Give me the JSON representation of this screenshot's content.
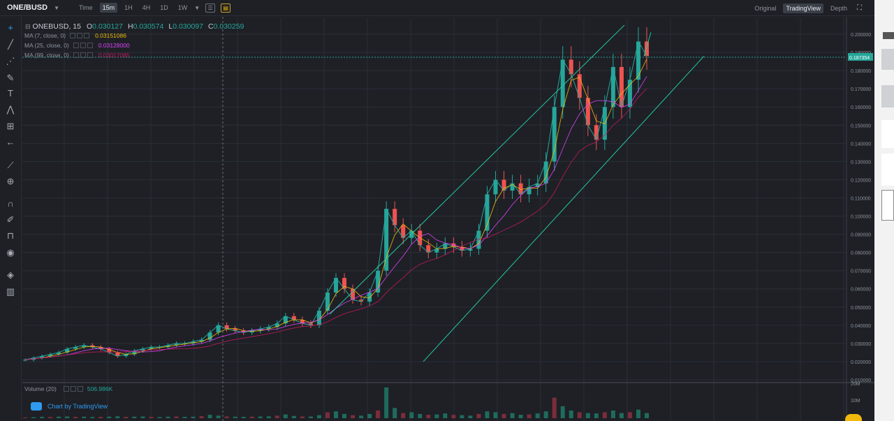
{
  "topbar": {
    "pair": "ONE/BUSD",
    "timeframes": [
      "Time",
      "15m",
      "1H",
      "4H",
      "1D",
      "1W"
    ],
    "active_timeframe": "15m",
    "views": [
      "Original",
      "TradingView",
      "Depth"
    ],
    "active_view": "TradingView"
  },
  "legend": {
    "symbol": "ONEBUSD, 15",
    "open_label": "O",
    "open": "0.030127",
    "high_label": "H",
    "high": "0.030574",
    "low_label": "L",
    "low": "0.030097",
    "close_label": "C",
    "close": "0.030259",
    "ma7_label": "MA (7, close, 0)",
    "ma7_value": "0.03151086",
    "ma25_label": "MA (25, close, 0)",
    "ma25_value": "0.03128000",
    "ma99_label": "MA (99, close, 0)",
    "ma99_value": "0.03017085",
    "volume_label": "Volume (20)",
    "volume_value": "506.986K",
    "tradingview_credit": "Chart by TradingView"
  },
  "colors": {
    "up": "#26a69a",
    "down": "#ef5350",
    "ma7": "#f0b90b",
    "ma25": "#e040fb",
    "ma99": "#c2185b",
    "channel": "#26c6a0",
    "accent": "#f0b90b"
  },
  "chart_data": {
    "type": "line",
    "price_axis_ticks": [
      "0.200000",
      "0.190000",
      "0.180000",
      "0.170000",
      "0.160000",
      "0.150000",
      "0.140000",
      "0.130000",
      "0.120000",
      "0.110000",
      "0.100000",
      "0.090000",
      "0.080000",
      "0.070000",
      "0.060000",
      "0.050000",
      "0.040000",
      "0.030000",
      "0.020000",
      "0.010000"
    ],
    "price_axis_values": [
      0.2,
      0.19,
      0.18,
      0.17,
      0.16,
      0.15,
      0.14,
      0.13,
      0.12,
      0.11,
      0.1,
      0.09,
      0.08,
      0.07,
      0.06,
      0.05,
      0.04,
      0.03,
      0.02,
      0.01
    ],
    "current_price_label": "0.187354",
    "current_price": 0.187354,
    "volume_axis_ticks": [
      "20M",
      "10M"
    ],
    "ylim": [
      0.01,
      0.205
    ],
    "series": [
      {
        "name": "ONEBUSD",
        "values": [
          0.021,
          0.022,
          0.023,
          0.024,
          0.025,
          0.027,
          0.028,
          0.029,
          0.028,
          0.027,
          0.025,
          0.023,
          0.024,
          0.026,
          0.027,
          0.028,
          0.028,
          0.029,
          0.03,
          0.03,
          0.031,
          0.032,
          0.036,
          0.04,
          0.038,
          0.037,
          0.036,
          0.037,
          0.038,
          0.039,
          0.041,
          0.045,
          0.043,
          0.041,
          0.04,
          0.048,
          0.058,
          0.066,
          0.06,
          0.054,
          0.053,
          0.058,
          0.07,
          0.104,
          0.095,
          0.088,
          0.092,
          0.084,
          0.08,
          0.082,
          0.085,
          0.083,
          0.081,
          0.082,
          0.092,
          0.112,
          0.12,
          0.114,
          0.118,
          0.112,
          0.116,
          0.118,
          0.13,
          0.16,
          0.186,
          0.178,
          0.165,
          0.15,
          0.142,
          0.16,
          0.182,
          0.16,
          0.175,
          0.196,
          0.188
        ]
      }
    ],
    "volume": [
      0.5,
      0.6,
      0.8,
      0.7,
      0.9,
      1.0,
      0.8,
      0.9,
      0.7,
      0.8,
      0.9,
      1.1,
      0.8,
      0.9,
      1.0,
      0.8,
      0.7,
      0.9,
      1.0,
      0.8,
      0.9,
      1.2,
      2.0,
      1.5,
      1.0,
      0.9,
      0.8,
      0.9,
      1.0,
      1.1,
      1.5,
      2.2,
      1.3,
      1.0,
      1.0,
      1.8,
      3.5,
      4.0,
      2.5,
      1.8,
      1.5,
      2.5,
      4.5,
      18.0,
      6.0,
      3.0,
      3.5,
      2.5,
      2.0,
      2.2,
      2.8,
      2.0,
      1.8,
      1.5,
      2.5,
      4.0,
      3.5,
      2.5,
      3.0,
      2.0,
      2.2,
      2.8,
      4.0,
      12.0,
      7.0,
      4.5,
      3.5,
      3.0,
      2.8,
      3.5,
      4.5,
      3.0,
      3.5,
      5.0,
      3.0
    ]
  }
}
